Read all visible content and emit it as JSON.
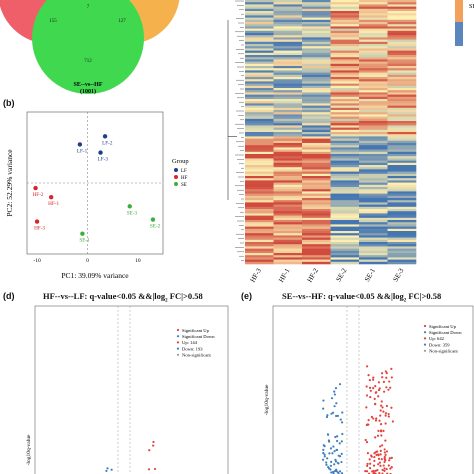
{
  "venn": {
    "counts": [
      "7",
      "155",
      "127",
      "712"
    ],
    "label": "SE--vs--HF",
    "total": "(1001)",
    "colors": [
      "#ee5f6a",
      "#f5b14c",
      "#3fd84f"
    ]
  },
  "pca": {
    "panel": "(b)",
    "xlabel": "PC1: 39.09% variance",
    "ylabel": "PC2: 52.29% variance",
    "legend_title": "Group",
    "groups": [
      {
        "name": "LF",
        "color": "#1f3c8f"
      },
      {
        "name": "HF",
        "color": "#d7252b"
      },
      {
        "name": "SE",
        "color": "#3aae3f"
      }
    ],
    "xticks": [
      "-10",
      "0",
      "10"
    ],
    "points": [
      {
        "label": "LF-1",
        "group": "LF",
        "x": -1.5,
        "y": 3.8
      },
      {
        "label": "LF-2",
        "group": "LF",
        "x": 3.5,
        "y": 4.6
      },
      {
        "label": "LF-3",
        "group": "LF",
        "x": 2.6,
        "y": 3.0
      },
      {
        "label": "HF-1",
        "group": "HF",
        "x": -7.2,
        "y": -1.4
      },
      {
        "label": "HF-2",
        "group": "HF",
        "x": -10.3,
        "y": -0.5
      },
      {
        "label": "HF-3",
        "group": "HF",
        "x": -10.0,
        "y": -3.8
      },
      {
        "label": "SE-1",
        "group": "SE",
        "x": -1.0,
        "y": -5.0
      },
      {
        "label": "SE-2",
        "group": "SE",
        "x": 13.0,
        "y": -3.6
      },
      {
        "label": "SE-3",
        "group": "SE",
        "x": 8.4,
        "y": -2.3
      }
    ]
  },
  "heatmap": {
    "columns": [
      "HF-3",
      "HF-1",
      "HF-2",
      "SE-2",
      "SE-1",
      "SE-3"
    ],
    "legend_letter": "SE"
  },
  "volcano_d": {
    "panel": "(d)",
    "title": "HF--vs--LF: q-value<0.05 &&|log",
    "title_sub": "2",
    "title_end": " FC|>0.58",
    "ylabel": "-log10q-value",
    "legend": [
      "Significant Up",
      "Significant Down",
      "Up: 144",
      "Down: 193",
      "Non-significant"
    ]
  },
  "volcano_e": {
    "panel": "(e)",
    "title": "SE--vs--HF: q-value<0.05 &&|log",
    "title_sub": "2",
    "title_end": " FC|>0.58",
    "ylabel": "-log10q-value",
    "legend": [
      "Significant Up",
      "Significant Down",
      "Up: 642",
      "Down: 359",
      "Non-significant"
    ]
  },
  "chart_data": [
    {
      "type": "scatter",
      "title": "",
      "xlabel": "PC1: 39.09% variance",
      "ylabel": "PC2: 52.29% variance",
      "xlim": [
        -12,
        15
      ],
      "ylim": [
        -7,
        7
      ],
      "series": [
        {
          "name": "LF",
          "x": [
            -1.5,
            3.5,
            2.6
          ],
          "y": [
            3.8,
            4.6,
            3.0
          ]
        },
        {
          "name": "HF",
          "x": [
            -7.2,
            -10.3,
            -10.0
          ],
          "y": [
            -1.4,
            -0.5,
            -3.8
          ]
        },
        {
          "name": "SE",
          "x": [
            -1.0,
            13.0,
            8.4
          ],
          "y": [
            -5.0,
            -3.6,
            -2.3
          ]
        }
      ]
    },
    {
      "type": "heatmap",
      "categories": [
        "HF-3",
        "HF-1",
        "HF-2",
        "SE-2",
        "SE-1",
        "SE-3"
      ]
    },
    {
      "type": "scatter",
      "title": "HF--vs--LF: q-value<0.05 &&|log2 FC|>0.58",
      "series": [
        {
          "name": "Significant Up",
          "values": 144
        },
        {
          "name": "Significant Down",
          "values": 193
        }
      ]
    },
    {
      "type": "scatter",
      "title": "SE--vs--HF: q-value<0.05 &&|log2 FC|>0.58",
      "series": [
        {
          "name": "Significant Up",
          "values": 642
        },
        {
          "name": "Significant Down",
          "values": 359
        }
      ]
    }
  ]
}
